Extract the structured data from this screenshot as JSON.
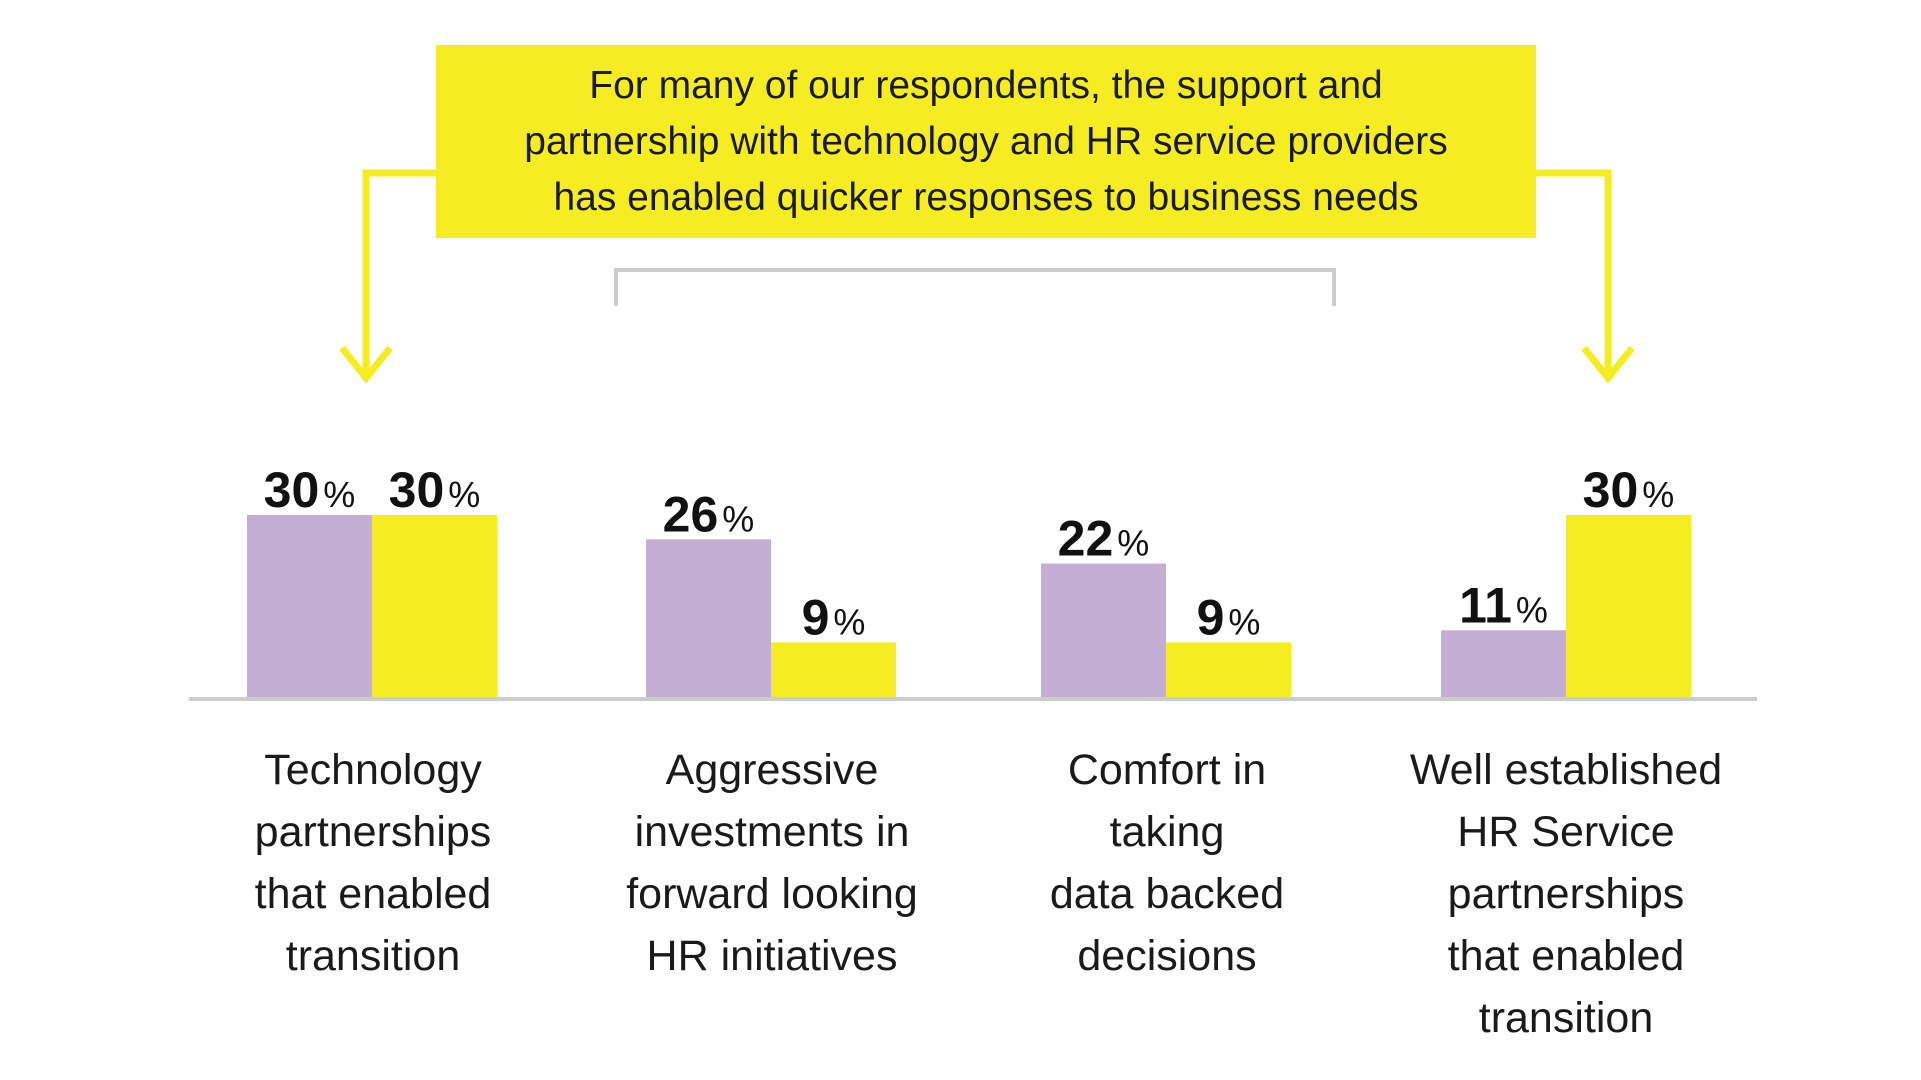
{
  "callout": {
    "text": "For many of our respondents, the support and\npartnership with technology and HR service providers\nhas enabled quicker responses to business needs"
  },
  "colors": {
    "series_a": "#c4aed3",
    "series_b": "#f5ed22",
    "accent": "#f5ed22",
    "bracket": "#cccccc",
    "baseline": "#cccccc"
  },
  "chart_data": {
    "type": "bar",
    "categories": [
      "Technology\npartnerships\nthat enabled\ntransition",
      "Aggressive\ninvestments in\nforward looking\nHR initiatives",
      "Comfort in\ntaking\ndata backed\ndecisions",
      "Well established\nHR Service\npartnerships\nthat enabled\ntransition"
    ],
    "series": [
      {
        "values": [
          30,
          26,
          22,
          11
        ],
        "color": "#c4aed3"
      },
      {
        "values": [
          30,
          9,
          9,
          30
        ],
        "color": "#f5ed22"
      }
    ],
    "value_suffix": "%",
    "ylim": [
      0,
      30
    ],
    "grid": false,
    "legend": "none"
  }
}
